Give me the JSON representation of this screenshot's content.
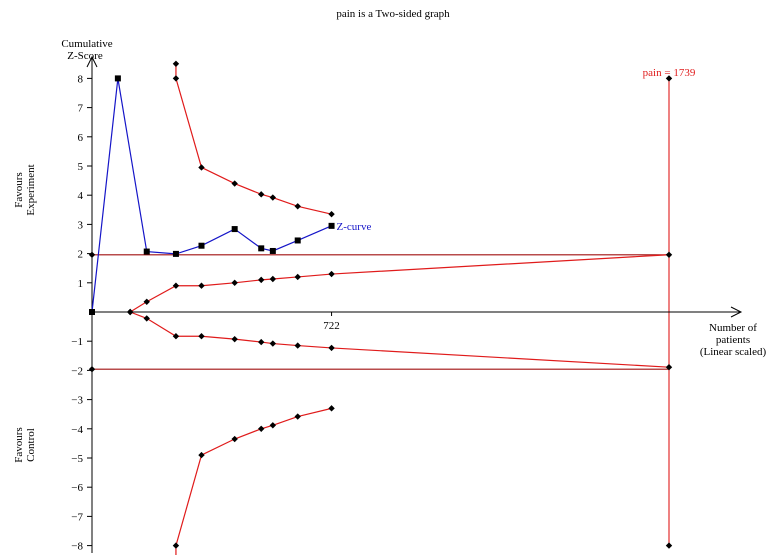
{
  "chart_data": {
    "type": "line",
    "title": "pain is a Two-sided graph",
    "y_axis_title_lines": [
      "Cumulative",
      "Z-Score"
    ],
    "x_axis_title_lines": [
      "Number of",
      "patients",
      "(Linear scaled)"
    ],
    "upper_side_label_lines": [
      "Favours",
      "Experiment"
    ],
    "lower_side_label_lines": [
      "Favours",
      "Control"
    ],
    "ylim": [
      -8,
      8
    ],
    "xlim": [
      0,
      1739
    ],
    "y_ticks": [
      8,
      7,
      6,
      5,
      4,
      3,
      2,
      1,
      -1,
      -2,
      -3,
      -4,
      -5,
      -6,
      -7,
      -8
    ],
    "y_tick_labels": [
      "8",
      "7",
      "6",
      "5",
      "4",
      "3",
      "2",
      "1",
      "−1",
      "−2",
      "−3",
      "−4",
      "−5",
      "−6",
      "−7",
      "−8"
    ],
    "x_tick_value": 722,
    "x_tick_label": "722",
    "required_information_size": 1739,
    "ris_label": "pain = 1739",
    "conventional_boundary": 1.96,
    "colors": {
      "z_curve": "#1515c8",
      "boundaries": "#e01b1b",
      "conventional": "#a01010",
      "axis": "#000000"
    },
    "series": [
      {
        "name": "Z-curve",
        "color": "#1515c8",
        "x": [
          0,
          78,
          165,
          253,
          330,
          430,
          510,
          545,
          620,
          722
        ],
        "y": [
          0,
          8,
          2.07,
          1.99,
          2.27,
          2.84,
          2.18,
          2.09,
          2.45,
          2.95
        ]
      },
      {
        "color": "#e01b1b",
        "x": [
          253,
          253,
          330,
          430,
          510,
          545,
          620,
          722
        ],
        "y": [
          8.5,
          8,
          4.95,
          4.4,
          4.03,
          3.92,
          3.62,
          3.35
        ]
      },
      {
        "color": "#e01b1b",
        "x": [
          253,
          253,
          330,
          430,
          510,
          545,
          620,
          722
        ],
        "y": [
          -8.5,
          -8,
          -4.9,
          -4.35,
          -4,
          -3.88,
          -3.58,
          -3.3
        ]
      },
      {
        "color": "#e01b1b",
        "x": [
          115,
          165,
          253,
          330,
          430,
          510,
          545,
          620,
          722,
          1739
        ],
        "y": [
          0,
          0.35,
          0.9,
          0.9,
          1.0,
          1.1,
          1.13,
          1.2,
          1.3,
          1.96
        ]
      },
      {
        "color": "#e01b1b",
        "x": [
          115,
          165,
          253,
          330,
          430,
          510,
          545,
          620,
          722,
          1739
        ],
        "y": [
          0,
          -0.22,
          -0.83,
          -0.83,
          -0.93,
          -1.03,
          -1.08,
          -1.15,
          -1.23,
          -1.89
        ]
      }
    ]
  }
}
